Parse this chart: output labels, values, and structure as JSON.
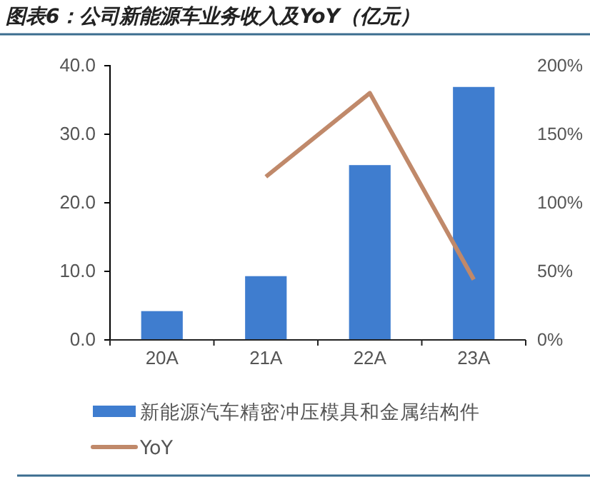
{
  "chart_data": {
    "type": "bar",
    "title": "图表6：公司新能源车业务收入及YoY（亿元）",
    "categories": [
      "20A",
      "21A",
      "22A",
      "23A"
    ],
    "series": [
      {
        "name": "新能源汽车精密冲压模具和金属结构件",
        "color": "#3f7dcf",
        "values": [
          4.2,
          9.3,
          25.5,
          36.9
        ]
      },
      {
        "name": "YoY",
        "type": "line",
        "axis": "y2",
        "color": "#c0896a",
        "values": [
          null,
          119,
          180,
          44
        ]
      }
    ],
    "ylim": [
      0,
      40
    ],
    "yticks": [
      {
        "value": 0,
        "label": "0.0"
      },
      {
        "value": 10,
        "label": "10.0"
      },
      {
        "value": 20,
        "label": "20.0"
      },
      {
        "value": 30,
        "label": "30.0"
      },
      {
        "value": 40,
        "label": "40.0"
      }
    ],
    "y2lim": [
      0,
      200
    ],
    "y2ticks": [
      {
        "value": 0,
        "label": "0%"
      },
      {
        "value": 50,
        "label": "50%"
      },
      {
        "value": 100,
        "label": "100%"
      },
      {
        "value": 150,
        "label": "150%"
      },
      {
        "value": 200,
        "label": "200%"
      }
    ],
    "legend": "bottom",
    "grid": false,
    "marker": "none",
    "line_style": "solid"
  }
}
